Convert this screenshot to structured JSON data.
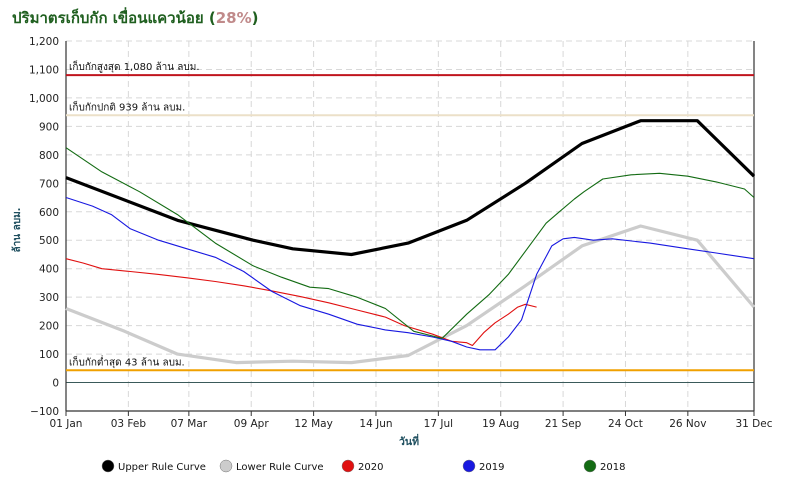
{
  "title": {
    "text": "ปริมาตรเก็บกัก เขื่อนแควน้อย",
    "percent": "28%"
  },
  "chart_data": {
    "type": "line",
    "title": "ปริมาตรเก็บกัก เขื่อนแควน้อย (28%)",
    "xlabel": "วันที่",
    "ylabel": "ล้าน ลบม.",
    "xlim": [
      1,
      365
    ],
    "ylim": [
      -100,
      1200
    ],
    "grid": true,
    "legend_position": "bottom",
    "x_unit": "day of year",
    "x_ticks": [
      {
        "label": "01 Jan",
        "day": 1
      },
      {
        "label": "03 Feb",
        "day": 34
      },
      {
        "label": "07 Mar",
        "day": 66
      },
      {
        "label": "09 Apr",
        "day": 99
      },
      {
        "label": "12 May",
        "day": 132
      },
      {
        "label": "14 Jun",
        "day": 165
      },
      {
        "label": "17 Jul",
        "day": 198
      },
      {
        "label": "19 Aug",
        "day": 231
      },
      {
        "label": "21 Sep",
        "day": 264
      },
      {
        "label": "24 Oct",
        "day": 297
      },
      {
        "label": "26 Nov",
        "day": 330
      },
      {
        "label": "31 Dec",
        "day": 365
      }
    ],
    "y_ticks": [
      "−100",
      "0",
      "100",
      "200",
      "300",
      "400",
      "500",
      "600",
      "700",
      "800",
      "900",
      "1,000",
      "1,100",
      "1,200"
    ],
    "y_tick_values": [
      -100,
      0,
      100,
      200,
      300,
      400,
      500,
      600,
      700,
      800,
      900,
      1000,
      1100,
      1200
    ],
    "reference_lines": [
      {
        "label": "เก็บกักสูงสุด 1,080 ล้าน ลบม.",
        "value": 1080,
        "color": "#c0141e"
      },
      {
        "label": "เก็บกักปกติ 939 ล้าน ลบม.",
        "value": 939,
        "color": "#ece0c8"
      },
      {
        "label": "เก็บกักต่ำสุด 43 ล้าน ลบม.",
        "value": 43,
        "color": "#f0a000"
      }
    ],
    "series": [
      {
        "name": "Upper Rule Curve",
        "color": "#000000",
        "x": [
          1,
          60,
          100,
          121,
          152,
          182,
          213,
          244,
          274,
          305,
          335,
          365
        ],
        "values": [
          720,
          570,
          500,
          470,
          450,
          490,
          570,
          700,
          840,
          920,
          920,
          725
        ]
      },
      {
        "name": "Lower Rule Curve",
        "color": "#cccccc",
        "x": [
          1,
          32,
          60,
          91,
          121,
          152,
          182,
          213,
          244,
          274,
          305,
          335,
          365
        ],
        "values": [
          260,
          180,
          100,
          70,
          75,
          70,
          95,
          200,
          340,
          480,
          550,
          500,
          265
        ]
      },
      {
        "name": "2020",
        "color": "#e01010",
        "x": [
          1,
          10,
          20,
          35,
          50,
          65,
          80,
          95,
          110,
          125,
          140,
          155,
          170,
          180,
          195,
          205,
          213,
          216,
          222,
          228,
          235,
          240,
          244,
          250
        ],
        "values": [
          435,
          420,
          400,
          390,
          380,
          368,
          355,
          340,
          322,
          302,
          280,
          255,
          230,
          200,
          170,
          145,
          140,
          130,
          175,
          210,
          240,
          265,
          275,
          265
        ]
      },
      {
        "name": "2019",
        "color": "#1818e0",
        "x": [
          1,
          15,
          25,
          35,
          50,
          65,
          80,
          95,
          110,
          125,
          140,
          155,
          170,
          182,
          195,
          205,
          213,
          220,
          228,
          235,
          242,
          250,
          258,
          264,
          270,
          280,
          290,
          310,
          330,
          345,
          365
        ],
        "values": [
          650,
          620,
          590,
          540,
          500,
          470,
          440,
          390,
          320,
          270,
          240,
          205,
          185,
          175,
          160,
          145,
          125,
          115,
          115,
          160,
          220,
          380,
          480,
          505,
          510,
          500,
          505,
          490,
          470,
          455,
          435
        ]
      },
      {
        "name": "2018",
        "color": "#136b13",
        "x": [
          1,
          20,
          40,
          60,
          80,
          100,
          115,
          130,
          140,
          155,
          170,
          185,
          200,
          213,
          225,
          235,
          245,
          255,
          262,
          270,
          275,
          285,
          300,
          315,
          330,
          345,
          360,
          365
        ],
        "values": [
          825,
          740,
          670,
          590,
          490,
          410,
          370,
          335,
          330,
          300,
          260,
          180,
          155,
          240,
          310,
          380,
          470,
          560,
          600,
          645,
          670,
          715,
          730,
          735,
          725,
          705,
          680,
          650
        ]
      }
    ]
  }
}
